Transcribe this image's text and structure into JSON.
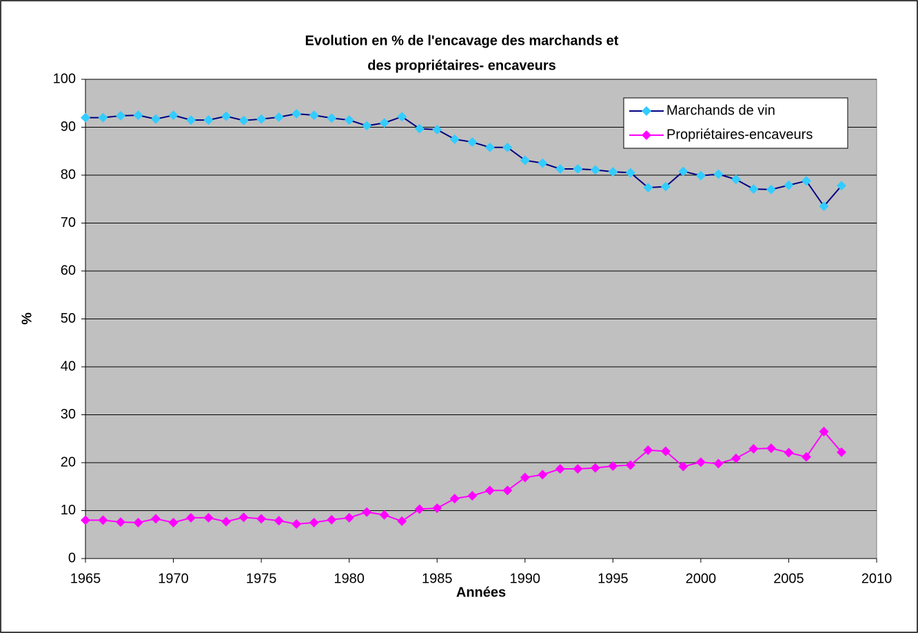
{
  "chart_data": {
    "type": "line",
    "title": [
      "Evolution en % de l'encavage des marchands et",
      "des propriétaires- encaveurs"
    ],
    "x_label": "Années",
    "y_label": "%",
    "x": [
      1965,
      1966,
      1967,
      1968,
      1969,
      1970,
      1971,
      1972,
      1973,
      1974,
      1975,
      1976,
      1977,
      1978,
      1979,
      1980,
      1981,
      1982,
      1983,
      1984,
      1985,
      1986,
      1987,
      1988,
      1989,
      1990,
      1991,
      1992,
      1993,
      1994,
      1995,
      1996,
      1997,
      1998,
      1999,
      2000,
      2001,
      2002,
      2003,
      2004,
      2005,
      2006,
      2007,
      2008
    ],
    "series": [
      {
        "name": "Marchands de vin",
        "color": "#33ccff",
        "line_color": "#000080",
        "values": [
          92,
          92,
          92.4,
          92.5,
          91.7,
          92.5,
          91.5,
          91.5,
          92.3,
          91.4,
          91.7,
          92.1,
          92.8,
          92.5,
          91.9,
          91.5,
          90.3,
          90.9,
          92.2,
          89.7,
          89.5,
          87.5,
          86.9,
          85.8,
          85.8,
          83.1,
          82.5,
          81.3,
          81.3,
          81.1,
          80.7,
          80.5,
          77.4,
          77.6,
          80.8,
          79.9,
          80.2,
          79.1,
          77.1,
          77.0,
          77.9,
          78.8,
          73.5,
          77.8
        ]
      },
      {
        "name": "Propriétaires-encaveurs",
        "color": "#ff00ff",
        "line_color": "#ff00ff",
        "values": [
          8,
          8,
          7.6,
          7.5,
          8.3,
          7.5,
          8.5,
          8.5,
          7.7,
          8.6,
          8.3,
          7.9,
          7.2,
          7.5,
          8.1,
          8.5,
          9.7,
          9.1,
          7.8,
          10.3,
          10.5,
          12.5,
          13.1,
          14.2,
          14.2,
          16.9,
          17.5,
          18.7,
          18.7,
          18.9,
          19.3,
          19.5,
          22.6,
          22.4,
          19.2,
          20.1,
          19.8,
          20.9,
          22.9,
          23.0,
          22.1,
          21.2,
          26.5,
          22.2
        ]
      }
    ],
    "xlim": [
      1965,
      2010
    ],
    "xticks": [
      1965,
      1970,
      1975,
      1980,
      1985,
      1990,
      1995,
      2000,
      2005,
      2010
    ],
    "ylim": [
      0,
      100
    ],
    "yticks": [
      0,
      10,
      20,
      30,
      40,
      50,
      60,
      70,
      80,
      90,
      100
    ],
    "grid": true,
    "legend": "top-right",
    "plot_background": "#c0c0c0"
  }
}
